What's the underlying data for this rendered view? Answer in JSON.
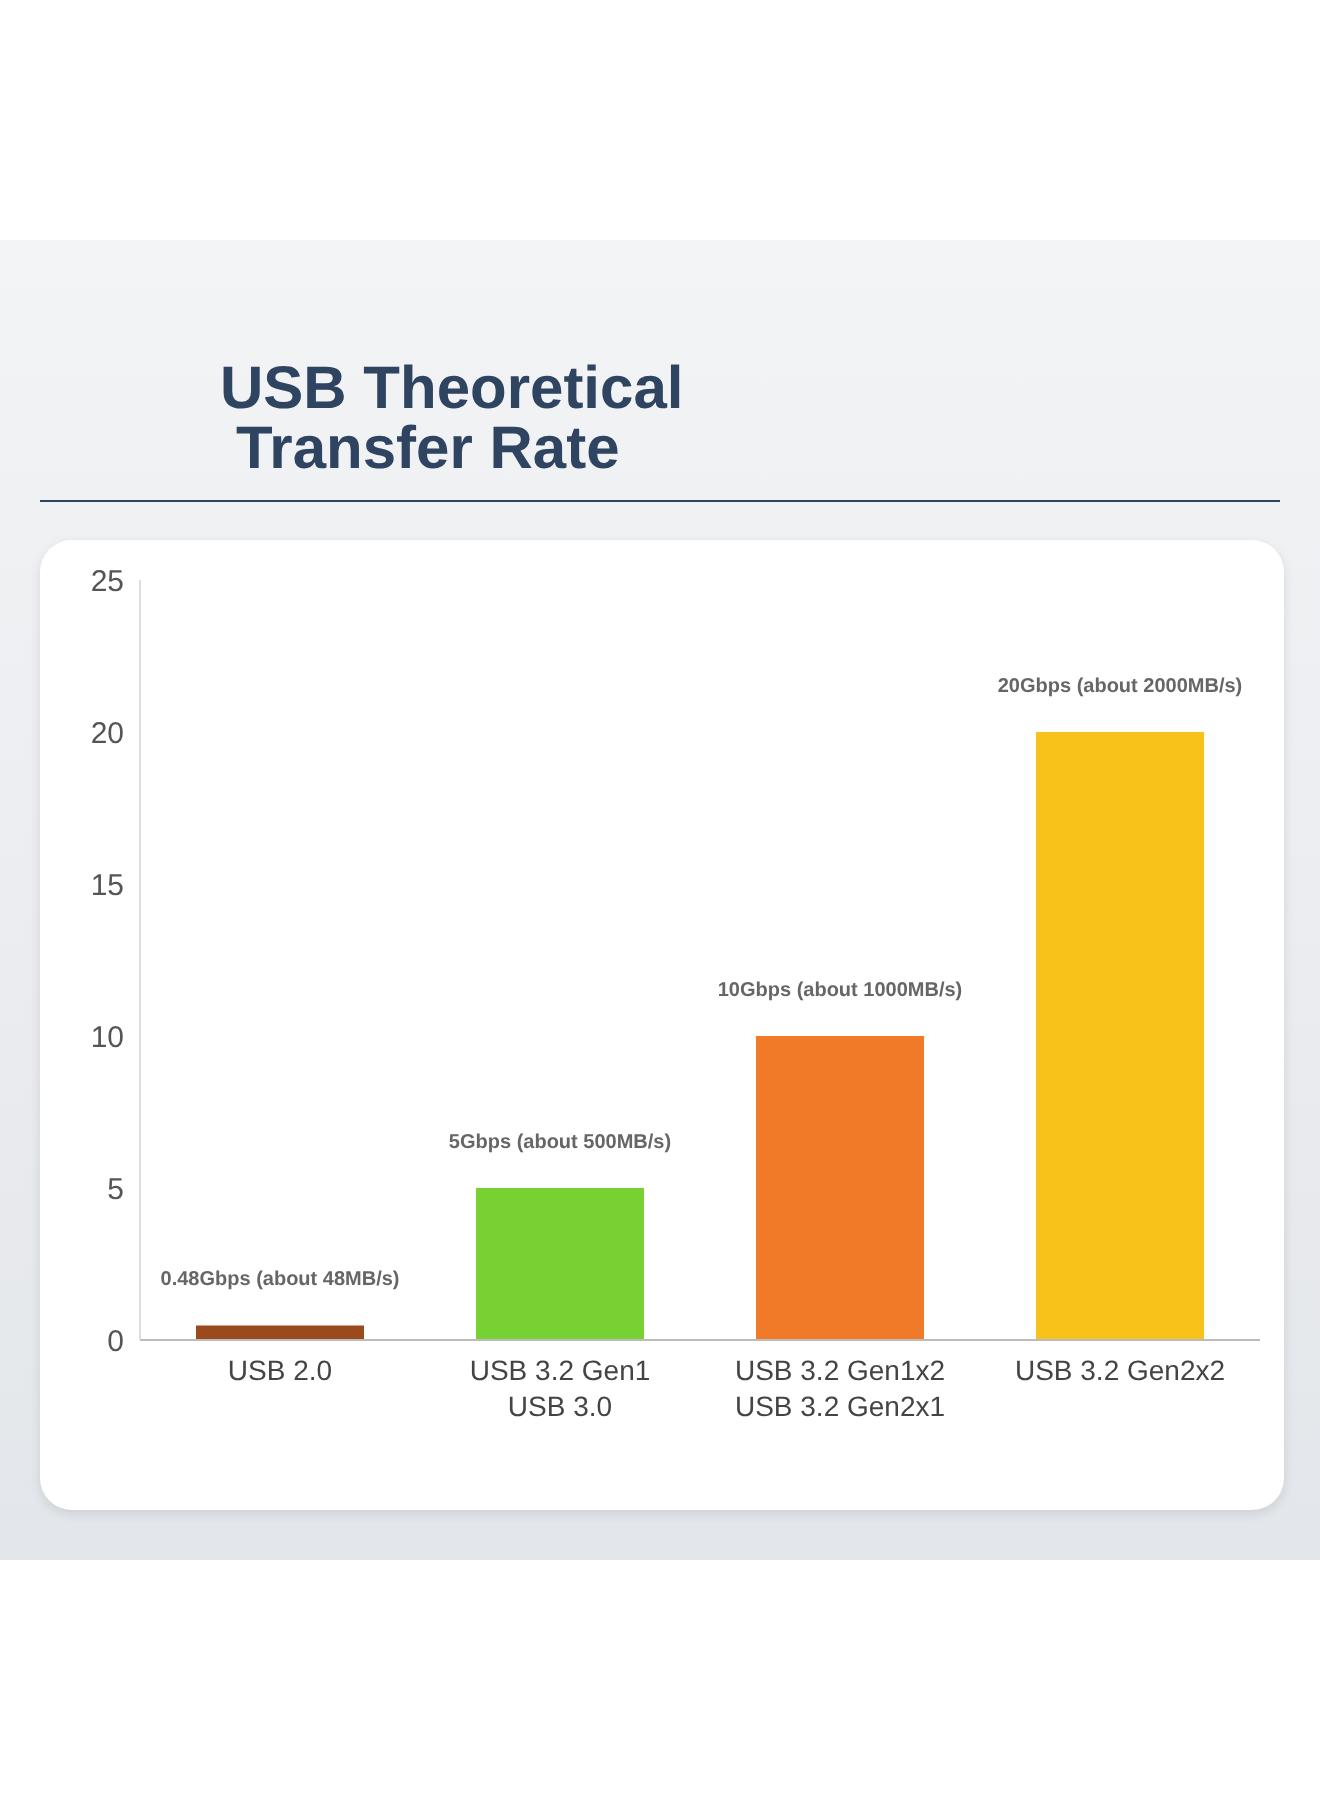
{
  "chart_data": {
    "type": "bar",
    "title": "USB Theoretical\nTransfer Rate",
    "categories": [
      "USB 2.0",
      "USB 3.2 Gen1\nUSB 3.0",
      "USB 3.2 Gen1x2\nUSB 3.2 Gen2x1",
      "USB 3.2 Gen2x2"
    ],
    "values": [
      0.48,
      5,
      10,
      20
    ],
    "colors": [
      "#9a4a1c",
      "#77d132",
      "#f07a28",
      "#f9c21a"
    ],
    "value_labels": [
      "0.48Gbps (about 48MB/s)",
      "5Gbps (about 500MB/s)",
      "10Gbps (about 1000MB/s)",
      "20Gbps (about 2000MB/s)"
    ],
    "ylim": [
      0,
      25
    ],
    "yticks": [
      0,
      5,
      10,
      15,
      20,
      25
    ],
    "grid": false,
    "legend": false
  }
}
